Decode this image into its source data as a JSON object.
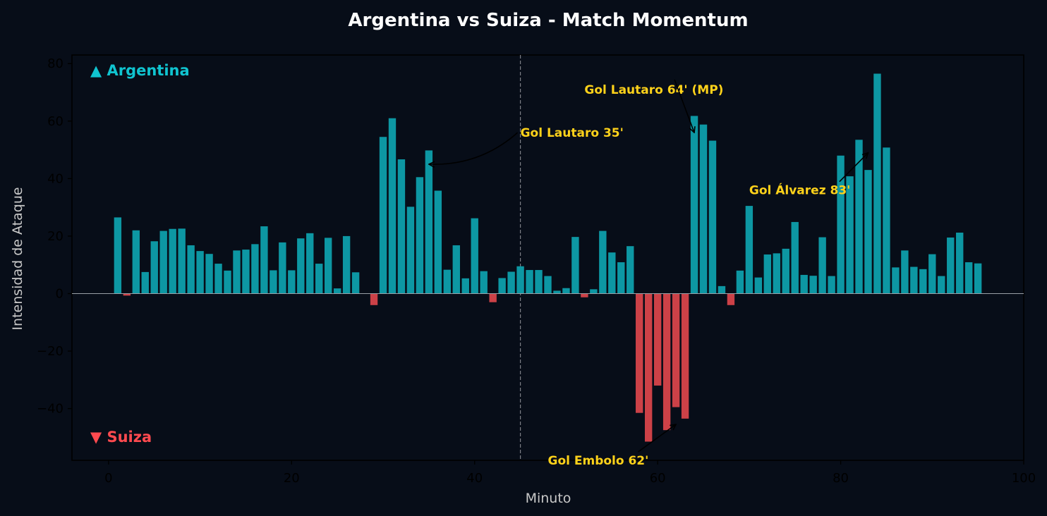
{
  "chart_data": {
    "type": "bar",
    "title": "Argentina vs Suiza - Match Momentum",
    "xlabel": "Minuto",
    "ylabel": "Intensidad de Ataque",
    "xlim": [
      -4,
      100
    ],
    "ylim": [
      -58,
      83
    ],
    "xticks": [
      0,
      20,
      40,
      60,
      80,
      100
    ],
    "yticks": [
      -40,
      -20,
      0,
      20,
      40,
      60,
      80
    ],
    "halftime_minute": 45,
    "x": [
      1,
      2,
      3,
      4,
      5,
      6,
      7,
      8,
      9,
      10,
      11,
      12,
      13,
      14,
      15,
      16,
      17,
      18,
      19,
      20,
      21,
      22,
      23,
      24,
      25,
      26,
      27,
      28,
      29,
      30,
      31,
      32,
      33,
      34,
      35,
      36,
      37,
      38,
      39,
      40,
      41,
      42,
      43,
      44,
      45,
      46,
      47,
      48,
      49,
      50,
      51,
      52,
      53,
      54,
      55,
      56,
      57,
      58,
      59,
      60,
      61,
      62,
      63,
      64,
      65,
      66,
      67,
      68,
      69,
      70,
      71,
      72,
      73,
      74,
      75,
      76,
      77,
      78,
      79,
      80,
      81,
      82,
      83,
      84,
      85,
      86,
      87,
      88,
      89,
      90,
      91,
      92,
      93,
      94,
      95
    ],
    "values": [
      26.5,
      -0.7,
      22,
      7.5,
      18.2,
      21.8,
      22.5,
      22.6,
      16.8,
      14.8,
      13.8,
      10.4,
      8,
      15,
      15.3,
      17.2,
      23.4,
      8.1,
      17.8,
      8.1,
      19.2,
      21,
      10.4,
      19.4,
      1.8,
      20,
      7.4,
      0,
      -4,
      54.5,
      61,
      46.7,
      30.2,
      40.5,
      49.8,
      35.8,
      8.3,
      16.8,
      5.3,
      26.2,
      7.8,
      -3,
      5.4,
      7.6,
      9.5,
      8.2,
      8.2,
      6.1,
      1,
      1.9,
      19.7,
      -1.3,
      1.5,
      21.8,
      14.3,
      10.9,
      16.5,
      -41.5,
      -51.5,
      -32,
      -47.5,
      -39.5,
      -43.5,
      61.8,
      58.8,
      53.2,
      2.6,
      -4,
      8,
      30.5,
      5.6,
      13.6,
      14,
      15.6,
      24.9,
      6.5,
      6.2,
      19.6,
      6.1,
      48,
      40.8,
      53.5,
      43,
      76.5,
      50.8,
      9.1,
      15,
      9.3,
      8.5,
      13.7,
      6.1,
      19.5,
      21.2,
      10.9,
      10.5
    ],
    "colors": {
      "positive": "#0d97a3",
      "negative": "#cc4147"
    },
    "legend": [
      {
        "label": "▲ Argentina",
        "color": "#10c4d0",
        "position": "top-left"
      },
      {
        "label": "▼ Suiza",
        "color": "#ff4a4f",
        "position": "bottom-left"
      }
    ],
    "annotations": [
      {
        "text": "Gol Lautaro 35'",
        "x": 35,
        "y": 45,
        "text_x": 45,
        "text_y": 56,
        "arrow": "arc3,rad=0.2",
        "color": "#ffd21a"
      },
      {
        "text": "Gol Embolo 62'",
        "x": 62,
        "y": -45.5,
        "text_x": 48,
        "text_y": -58,
        "arrow": "straight",
        "color": "#ffd21a"
      },
      {
        "text": "Gol Lautaro 64' (MP)",
        "x": 64,
        "y": 56,
        "text_x": 52,
        "text_y": 71,
        "arrow": "straight",
        "color": "#ffd21a"
      },
      {
        "text": "Gol Álvarez 83'",
        "x": 83,
        "y": 49,
        "text_x": 70,
        "text_y": 36,
        "arrow": "straight",
        "color": "#ffd21a"
      }
    ]
  }
}
